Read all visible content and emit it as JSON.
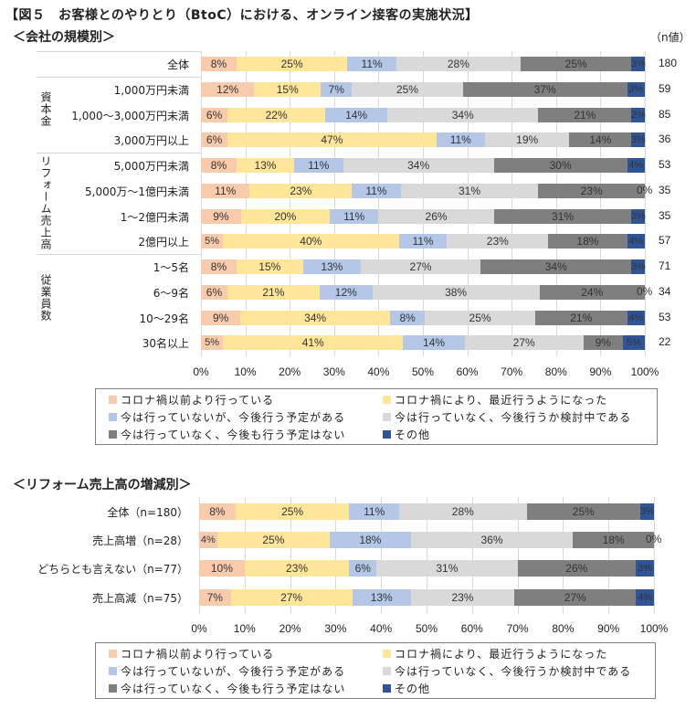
{
  "title": "【図５　お客様とのやりとり（BtoC）における、オンライン接客の実施状況】",
  "colors": {
    "before_covid": "#f8cbad",
    "recent": "#ffe699",
    "plan": "#b4c7e7",
    "considering": "#d9d9d9",
    "no_plan": "#7f7f7f",
    "other": "#2f5597"
  },
  "legend": [
    {
      "key": "before_covid",
      "label": "コロナ禍以前より行っている"
    },
    {
      "key": "recent",
      "label": "コロナ禍により、最近行うようになった"
    },
    {
      "key": "plan",
      "label": "今は行っていないが、今後行う予定がある"
    },
    {
      "key": "considering",
      "label": "今は行っていなく、今後行うか検討中である"
    },
    {
      "key": "no_plan",
      "label": "今は行っていなく、今後も行う予定はない"
    },
    {
      "key": "other",
      "label": "その他"
    }
  ],
  "chart_data": [
    {
      "type": "bar",
      "orientation": "horizontal",
      "stacked": "percent",
      "title": "＜会社の規模別＞",
      "n_header": "（n値）",
      "xlabel": "",
      "ylabel": "",
      "xlim": [
        0,
        100
      ],
      "xticks": [
        "0%",
        "10%",
        "20%",
        "30%",
        "40%",
        "50%",
        "60%",
        "70%",
        "80%",
        "90%",
        "100%"
      ],
      "grid": true,
      "legend_position": "bottom",
      "groups": [
        {
          "label": "",
          "rows": [
            0
          ]
        },
        {
          "label": "資本金",
          "rows": [
            1,
            2,
            3
          ]
        },
        {
          "label": "リフォーム売上高",
          "rows": [
            4,
            5,
            6,
            7
          ]
        },
        {
          "label": "従業員数",
          "rows": [
            8,
            9,
            10,
            11
          ]
        }
      ],
      "categories": [
        "全体",
        "1,000万円未満",
        "1,000～3,000万円未満",
        "3,000万円以上",
        "5,000万円未満",
        "5,000万～1億円未満",
        "1～2億円未満",
        "2億円以上",
        "1～5名",
        "6～9名",
        "10～29名",
        "30名以上"
      ],
      "n": [
        180,
        59,
        85,
        36,
        53,
        35,
        35,
        57,
        71,
        34,
        53,
        22
      ],
      "series": [
        {
          "name": "コロナ禍以前より行っている",
          "values": [
            8,
            12,
            6,
            6,
            8,
            11,
            9,
            5,
            8,
            6,
            9,
            5
          ]
        },
        {
          "name": "コロナ禍により、最近行うようになった",
          "values": [
            25,
            15,
            22,
            47,
            13,
            23,
            20,
            40,
            15,
            21,
            34,
            41
          ]
        },
        {
          "name": "今は行っていないが、今後行う予定がある",
          "values": [
            11,
            7,
            14,
            11,
            11,
            11,
            11,
            11,
            13,
            12,
            8,
            14
          ]
        },
        {
          "name": "今は行っていなく、今後行うか検討中である",
          "values": [
            28,
            25,
            34,
            19,
            34,
            31,
            26,
            23,
            27,
            38,
            25,
            27
          ]
        },
        {
          "name": "今は行っていなく、今後も行う予定はない",
          "values": [
            25,
            37,
            21,
            14,
            30,
            23,
            31,
            18,
            34,
            24,
            21,
            9
          ]
        },
        {
          "name": "その他",
          "values": [
            3,
            3,
            2,
            3,
            4,
            0,
            3,
            4,
            3,
            0,
            4,
            5
          ]
        }
      ]
    },
    {
      "type": "bar",
      "orientation": "horizontal",
      "stacked": "percent",
      "title": "＜リフォーム売上高の増減別＞",
      "xlabel": "",
      "ylabel": "",
      "xlim": [
        0,
        100
      ],
      "xticks": [
        "0%",
        "10%",
        "20%",
        "30%",
        "40%",
        "50%",
        "60%",
        "70%",
        "80%",
        "90%",
        "100%"
      ],
      "grid": true,
      "legend_position": "bottom",
      "categories": [
        "全体（n=180）",
        "売上高増（n=28）",
        "どちらとも言えない（n=77）",
        "売上高減（n=75）"
      ],
      "series": [
        {
          "name": "コロナ禍以前より行っている",
          "values": [
            8,
            4,
            10,
            7
          ]
        },
        {
          "name": "コロナ禍により、最近行うようになった",
          "values": [
            25,
            25,
            23,
            27
          ]
        },
        {
          "name": "今は行っていないが、今後行う予定がある",
          "values": [
            11,
            18,
            6,
            13
          ]
        },
        {
          "name": "今は行っていなく、今後行うか検討中である",
          "values": [
            28,
            36,
            31,
            23
          ]
        },
        {
          "name": "今は行っていなく、今後も行う予定はない",
          "values": [
            25,
            18,
            26,
            27
          ]
        },
        {
          "name": "その他",
          "values": [
            3,
            0,
            3,
            4
          ]
        }
      ]
    }
  ]
}
